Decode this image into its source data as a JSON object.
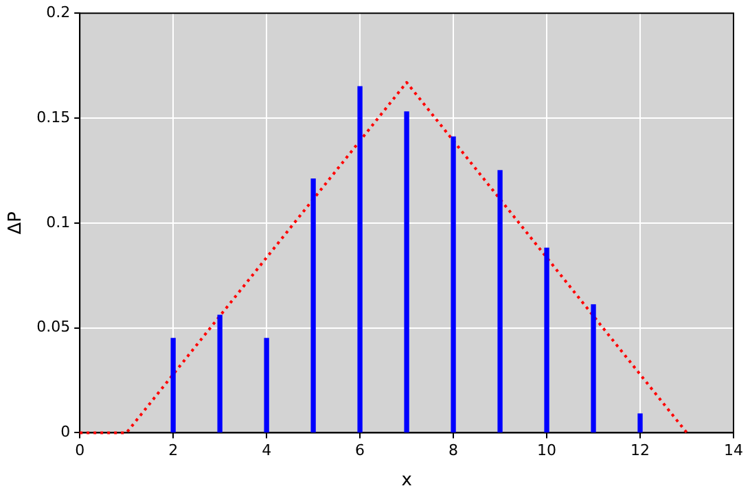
{
  "chart_data": {
    "type": "bar",
    "xlabel": "x",
    "ylabel": "ΔP",
    "xlim": [
      0,
      14
    ],
    "xticks": [
      0,
      2,
      4,
      6,
      8,
      10,
      12,
      14
    ],
    "ylim": [
      0,
      0.2
    ],
    "yticks": [
      0,
      0.05,
      0.1,
      0.15,
      0.2
    ],
    "grid": true,
    "legend": false,
    "series": [
      {
        "color": "#0000ff",
        "x": [
          2,
          3,
          4,
          5,
          6,
          7,
          8,
          9,
          10,
          11,
          12
        ],
        "values": [
          0.045,
          0.056,
          0.045,
          0.121,
          0.165,
          0.153,
          0.141,
          0.125,
          0.088,
          0.061,
          0.009
        ]
      },
      {
        "type": "line",
        "color": "#ff0000",
        "line_style": "dotted",
        "marker": "none",
        "x": [
          0,
          1,
          7,
          13
        ],
        "values": [
          0,
          0,
          0.167,
          0
        ]
      }
    ]
  }
}
